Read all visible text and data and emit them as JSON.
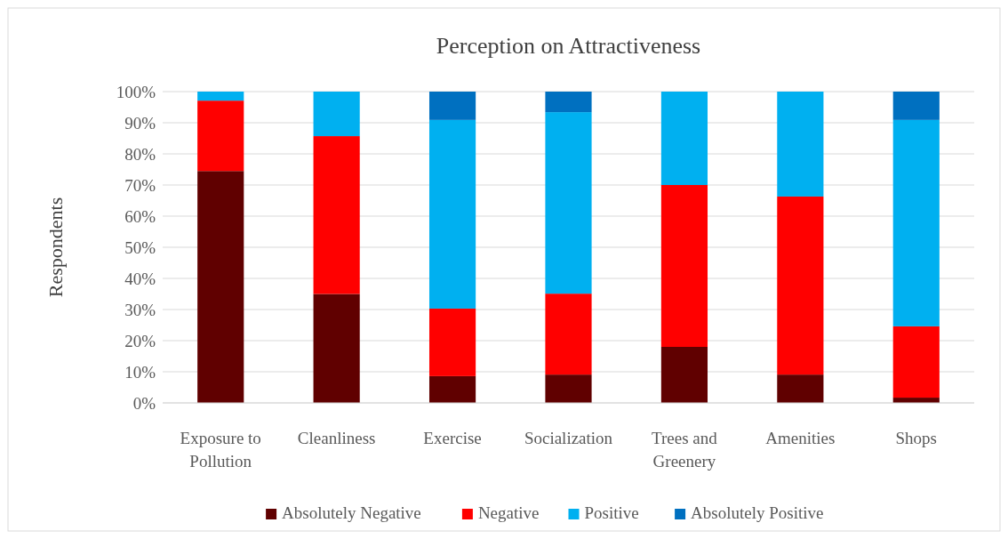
{
  "chart_data": {
    "type": "bar",
    "title": "Perception on Attractiveness",
    "ylabel": "Respondents",
    "stacked": true,
    "categories": [
      "Exposure to Pollution",
      "Cleanliness",
      "Exercise",
      "Socialization",
      "Trees and Greenery",
      "Amenities",
      "Shops"
    ],
    "series": [
      {
        "name": "Absolutely Negative",
        "color": "#600000",
        "values": [
          74.5,
          35,
          8.6,
          9.1,
          18,
          9.1,
          1.7
        ]
      },
      {
        "name": "Negative",
        "color": "#ff0000",
        "values": [
          22.6,
          50.7,
          21.7,
          26,
          52,
          57.2,
          22.9
        ]
      },
      {
        "name": "Positive",
        "color": "#00b0f0",
        "values": [
          2.9,
          14.3,
          60.6,
          58.3,
          30,
          33.7,
          66.3
        ]
      },
      {
        "name": "Absolutely Positive",
        "color": "#0070c0",
        "values": [
          0,
          0,
          9.1,
          6.6,
          0,
          0,
          9.1
        ]
      }
    ],
    "ylim": [
      0,
      100
    ],
    "yticks": [
      {
        "value": 0,
        "label": "0%"
      },
      {
        "value": 10,
        "label": "10%"
      },
      {
        "value": 20,
        "label": "20%"
      },
      {
        "value": 30,
        "label": "30%"
      },
      {
        "value": 40,
        "label": "40%"
      },
      {
        "value": 50,
        "label": "50%"
      },
      {
        "value": 60,
        "label": "60%"
      },
      {
        "value": 70,
        "label": "70%"
      },
      {
        "value": 80,
        "label": "80%"
      },
      {
        "value": 90,
        "label": "90%"
      },
      {
        "value": 100,
        "label": "100%"
      }
    ],
    "grid": "y",
    "legend": "bottom"
  }
}
